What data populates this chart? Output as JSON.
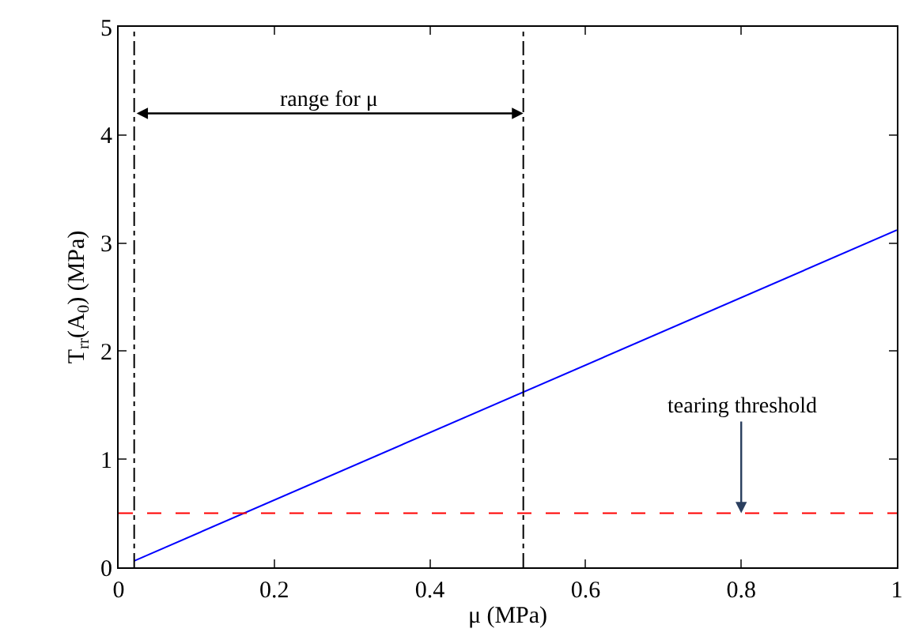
{
  "chart_data": {
    "type": "line",
    "xlabel": "μ (MPa)",
    "ylabel": "T$_{rr}$(A$_{0}$) (MPa)",
    "xlim": [
      0,
      1
    ],
    "ylim": [
      0,
      5
    ],
    "xticks": [
      0,
      0.2,
      0.4,
      0.6,
      0.8,
      1
    ],
    "yticks": [
      0,
      1,
      2,
      3,
      4,
      5
    ],
    "marker": "none",
    "series": [
      {
        "color": "#0000ff",
        "x": [
          0.02,
          1
        ],
        "values": [
          0.06,
          3.12
        ],
        "line_style": "solid"
      }
    ],
    "ref_lines": [
      {
        "axis": "x",
        "value": 0.02,
        "color": "#000000",
        "line_style": "dashdot"
      },
      {
        "axis": "x",
        "value": 0.52,
        "color": "#000000",
        "line_style": "dashdot"
      },
      {
        "axis": "y",
        "value": 0.5,
        "color": "#ff0000",
        "line_style": "dashed"
      }
    ],
    "annotations": [
      "range for μ",
      {
        "text": "tearing threshold",
        "x": 0.8,
        "y": 0.5
      }
    ]
  }
}
